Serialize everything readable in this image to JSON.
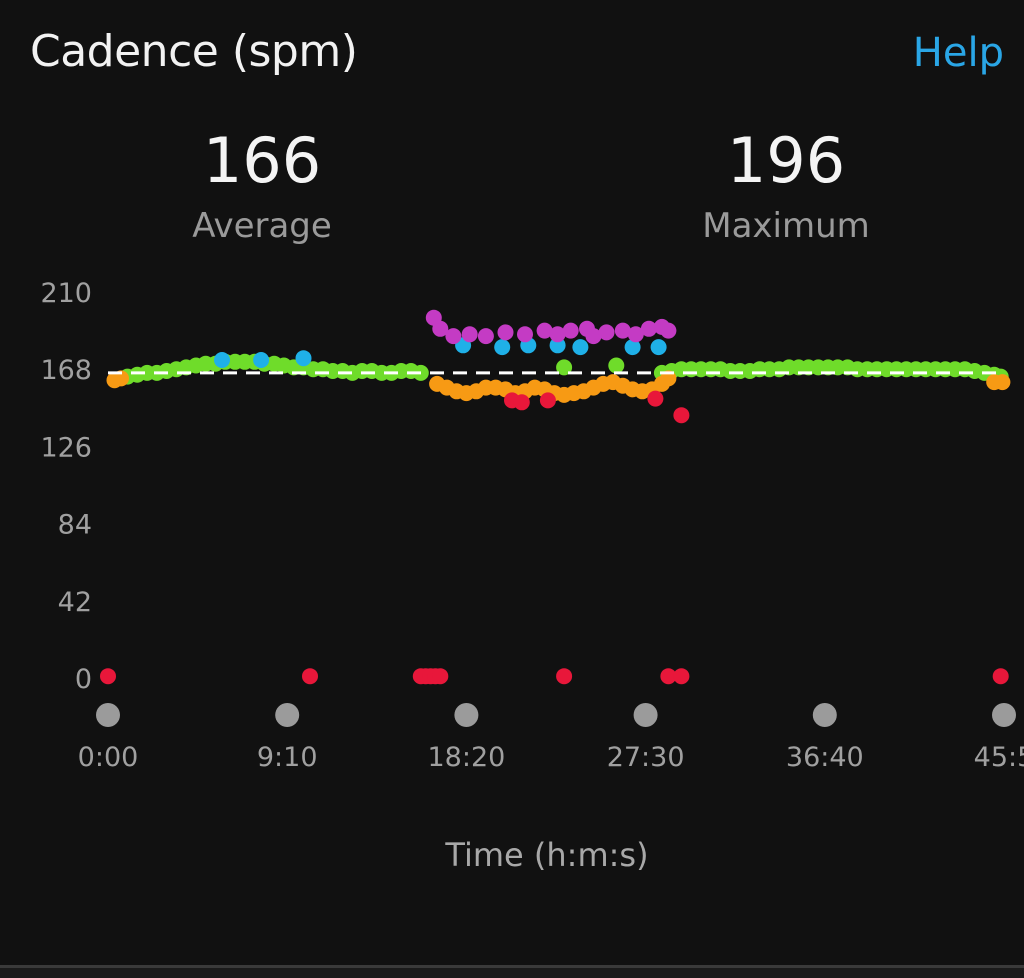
{
  "header": {
    "title": "Cadence (spm)",
    "help_label": "Help"
  },
  "stats": {
    "average": {
      "value": "166",
      "label": "Average"
    },
    "maximum": {
      "value": "196",
      "label": "Maximum"
    }
  },
  "colors": {
    "background": "#111111",
    "accent": "#2aa6e6",
    "zone_green": "#6fdc2a",
    "zone_blue": "#1fb0e8",
    "zone_purple": "#c43bc4",
    "zone_orange": "#f79a14",
    "zone_red": "#e8173a",
    "marker": "#9b9b9b"
  },
  "chart_data": {
    "type": "scatter",
    "xlabel": "Time (h:m:s)",
    "ylabel": "",
    "xlim": [
      0,
      2750
    ],
    "ylim": [
      0,
      210
    ],
    "y_ticks": [
      "0",
      "42",
      "84",
      "126",
      "168",
      "210"
    ],
    "x_ticks": [
      {
        "label": "0:00",
        "t": 0
      },
      {
        "label": "9:10",
        "t": 550
      },
      {
        "label": "18:20",
        "t": 1100
      },
      {
        "label": "27:30",
        "t": 1650
      },
      {
        "label": "36:40",
        "t": 2200
      },
      {
        "label": "45:5",
        "t": 2750
      }
    ],
    "average_line": 166,
    "series": [
      {
        "color": "green",
        "points": [
          [
            60,
            164
          ],
          [
            90,
            165
          ],
          [
            120,
            166
          ],
          [
            150,
            166
          ],
          [
            180,
            167
          ],
          [
            210,
            168
          ],
          [
            240,
            169
          ],
          [
            270,
            170
          ],
          [
            300,
            171
          ],
          [
            330,
            171
          ],
          [
            360,
            172
          ],
          [
            390,
            172
          ],
          [
            420,
            172
          ],
          [
            450,
            172
          ],
          [
            480,
            171
          ],
          [
            510,
            171
          ],
          [
            540,
            170
          ],
          [
            570,
            169
          ],
          [
            600,
            169
          ],
          [
            630,
            168
          ],
          [
            660,
            168
          ],
          [
            690,
            167
          ],
          [
            720,
            167
          ],
          [
            750,
            166
          ],
          [
            780,
            167
          ],
          [
            810,
            167
          ],
          [
            840,
            166
          ],
          [
            870,
            166
          ],
          [
            900,
            167
          ],
          [
            930,
            167
          ],
          [
            960,
            166
          ],
          [
            1700,
            166
          ],
          [
            1730,
            167
          ],
          [
            1760,
            168
          ],
          [
            1790,
            168
          ],
          [
            1820,
            168
          ],
          [
            1850,
            168
          ],
          [
            1880,
            168
          ],
          [
            1910,
            167
          ],
          [
            1940,
            167
          ],
          [
            1970,
            167
          ],
          [
            2000,
            168
          ],
          [
            2030,
            168
          ],
          [
            2060,
            168
          ],
          [
            2090,
            169
          ],
          [
            2120,
            169
          ],
          [
            2150,
            169
          ],
          [
            2180,
            169
          ],
          [
            2210,
            169
          ],
          [
            2240,
            169
          ],
          [
            2270,
            169
          ],
          [
            2300,
            168
          ],
          [
            2330,
            168
          ],
          [
            2360,
            168
          ],
          [
            2390,
            168
          ],
          [
            2420,
            168
          ],
          [
            2450,
            168
          ],
          [
            2480,
            168
          ],
          [
            2510,
            168
          ],
          [
            2540,
            168
          ],
          [
            2570,
            168
          ],
          [
            2600,
            168
          ],
          [
            2630,
            168
          ],
          [
            2660,
            167
          ],
          [
            2690,
            166
          ],
          [
            2720,
            165
          ],
          [
            2740,
            164
          ],
          [
            1400,
            169
          ],
          [
            1560,
            170
          ]
        ]
      },
      {
        "color": "orange",
        "points": [
          [
            20,
            162
          ],
          [
            40,
            163
          ],
          [
            1010,
            160
          ],
          [
            1040,
            158
          ],
          [
            1070,
            156
          ],
          [
            1100,
            155
          ],
          [
            1130,
            156
          ],
          [
            1160,
            158
          ],
          [
            1190,
            158
          ],
          [
            1220,
            157
          ],
          [
            1250,
            155
          ],
          [
            1280,
            156
          ],
          [
            1310,
            158
          ],
          [
            1340,
            157
          ],
          [
            1370,
            155
          ],
          [
            1400,
            154
          ],
          [
            1430,
            155
          ],
          [
            1460,
            156
          ],
          [
            1490,
            158
          ],
          [
            1520,
            160
          ],
          [
            1550,
            161
          ],
          [
            1580,
            159
          ],
          [
            1610,
            157
          ],
          [
            1640,
            156
          ],
          [
            1670,
            157
          ],
          [
            1700,
            160
          ],
          [
            1720,
            163
          ],
          [
            2720,
            161
          ],
          [
            2745,
            161
          ]
        ]
      },
      {
        "color": "blue",
        "points": [
          [
            350,
            173
          ],
          [
            470,
            173
          ],
          [
            600,
            174
          ],
          [
            1090,
            181
          ],
          [
            1210,
            180
          ],
          [
            1290,
            181
          ],
          [
            1380,
            181
          ],
          [
            1450,
            180
          ],
          [
            1610,
            180
          ],
          [
            1690,
            180
          ]
        ]
      },
      {
        "color": "purple",
        "points": [
          [
            1000,
            196
          ],
          [
            1020,
            190
          ],
          [
            1060,
            186
          ],
          [
            1110,
            187
          ],
          [
            1160,
            186
          ],
          [
            1220,
            188
          ],
          [
            1280,
            187
          ],
          [
            1340,
            189
          ],
          [
            1380,
            187
          ],
          [
            1420,
            189
          ],
          [
            1470,
            190
          ],
          [
            1490,
            186
          ],
          [
            1530,
            188
          ],
          [
            1580,
            189
          ],
          [
            1620,
            187
          ],
          [
            1660,
            190
          ],
          [
            1700,
            191
          ],
          [
            1720,
            189
          ]
        ]
      },
      {
        "color": "red",
        "points": [
          [
            0,
            1
          ],
          [
            620,
            1
          ],
          [
            960,
            1
          ],
          [
            975,
            1
          ],
          [
            990,
            1
          ],
          [
            1005,
            1
          ],
          [
            1020,
            1
          ],
          [
            1400,
            1
          ],
          [
            1720,
            1
          ],
          [
            1760,
            1
          ],
          [
            2740,
            1
          ],
          [
            1240,
            151
          ],
          [
            1270,
            150
          ],
          [
            1350,
            151
          ],
          [
            1680,
            152
          ],
          [
            1760,
            143
          ]
        ]
      }
    ]
  }
}
